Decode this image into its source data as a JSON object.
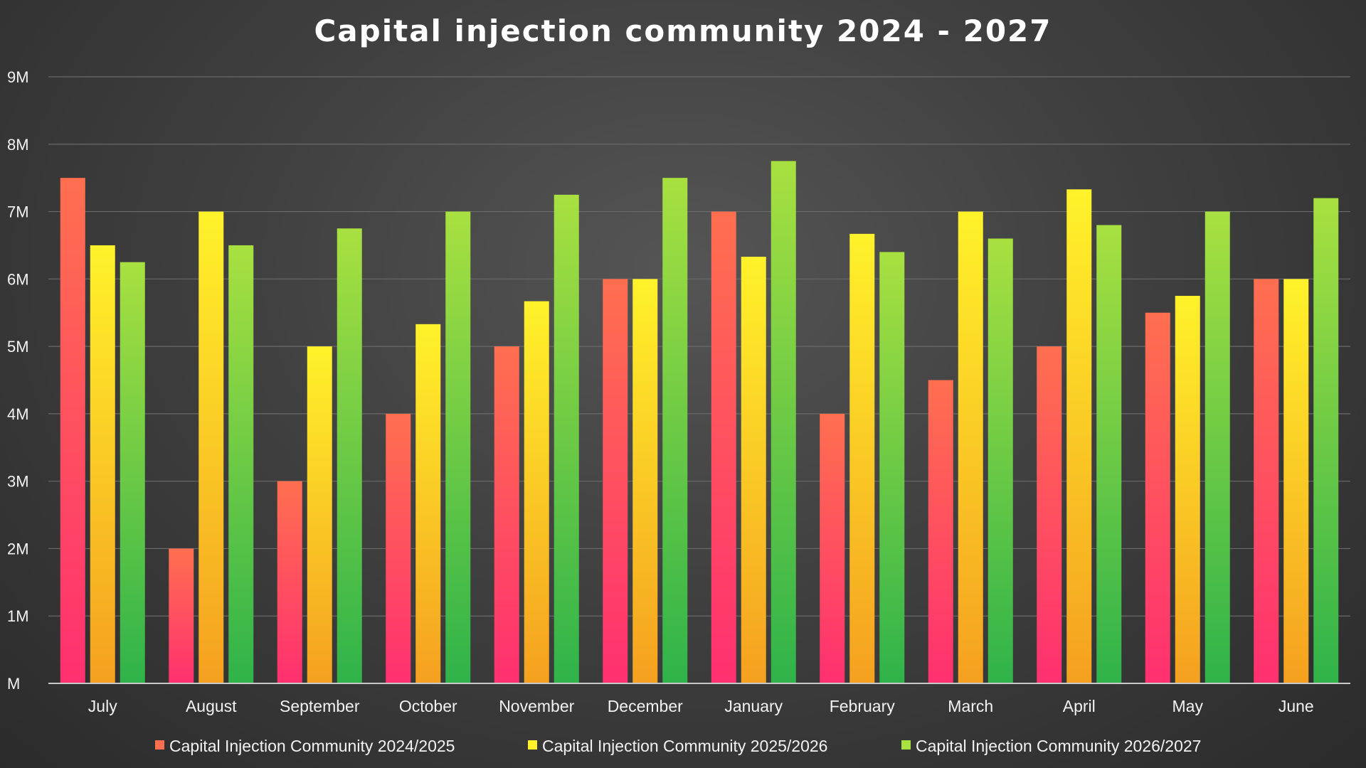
{
  "chart_data": {
    "type": "bar",
    "title": "Capital injection community 2024 - 2027",
    "xlabel": "",
    "ylabel": "",
    "ylim": [
      0,
      9
    ],
    "y_ticks": [
      {
        "value": 0,
        "label": "M"
      },
      {
        "value": 1,
        "label": "1M"
      },
      {
        "value": 2,
        "label": "2M"
      },
      {
        "value": 3,
        "label": "3M"
      },
      {
        "value": 4,
        "label": "4M"
      },
      {
        "value": 5,
        "label": "5M"
      },
      {
        "value": 6,
        "label": "6M"
      },
      {
        "value": 7,
        "label": "7M"
      },
      {
        "value": 8,
        "label": "8M"
      },
      {
        "value": 9,
        "label": "9M"
      }
    ],
    "grid": true,
    "legend_position": "bottom",
    "categories": [
      "July",
      "August",
      "September",
      "October",
      "November",
      "December",
      "January",
      "February",
      "March",
      "April",
      "May",
      "June"
    ],
    "series": [
      {
        "name": "Capital Injection Community 2024/2025",
        "color_top": "#ff6f4f",
        "color_bottom": "#ff3070",
        "values": [
          7.5,
          2.0,
          3.0,
          4.0,
          5.0,
          6.0,
          7.0,
          4.0,
          4.5,
          5.0,
          5.5,
          6.0
        ]
      },
      {
        "name": "Capital Injection Community 2025/2026",
        "color_top": "#fff22a",
        "color_bottom": "#f5a020",
        "values": [
          6.5,
          7.0,
          5.0,
          5.33,
          5.67,
          6.0,
          6.33,
          6.67,
          7.0,
          7.33,
          5.75,
          6.0
        ]
      },
      {
        "name": "Capital Injection Community 2026/2027",
        "color_top": "#a8e040",
        "color_bottom": "#2fb34a",
        "values": [
          6.25,
          6.5,
          6.75,
          7.0,
          7.25,
          7.5,
          7.75,
          6.4,
          6.6,
          6.8,
          7.0,
          7.2
        ]
      }
    ]
  }
}
